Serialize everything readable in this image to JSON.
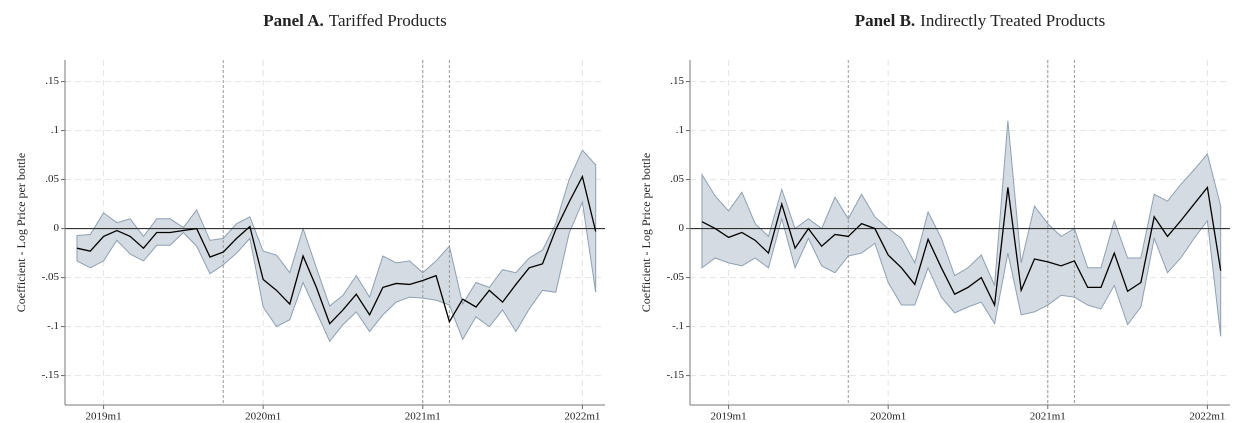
{
  "chart_data": [
    {
      "type": "line",
      "title_prefix": "Panel A.",
      "title": "Tariffed Products",
      "ylabel": "Coefficient - Log Price per bottle",
      "x": [
        706,
        707,
        708,
        709,
        710,
        711,
        712,
        713,
        714,
        715,
        716,
        717,
        718,
        719,
        720,
        721,
        722,
        723,
        724,
        725,
        726,
        727,
        728,
        729,
        730,
        731,
        732,
        733,
        734,
        735,
        736,
        737,
        738,
        739,
        740,
        741,
        742,
        743,
        744,
        745
      ],
      "values": [
        -0.02,
        -0.023,
        -0.008,
        -0.002,
        -0.008,
        -0.02,
        -0.004,
        -0.004,
        -0.002,
        0.0,
        -0.029,
        -0.024,
        -0.01,
        0.002,
        -0.052,
        -0.063,
        -0.077,
        -0.028,
        -0.06,
        -0.097,
        -0.083,
        -0.067,
        -0.088,
        -0.06,
        -0.056,
        -0.057,
        -0.053,
        -0.048,
        -0.095,
        -0.072,
        -0.08,
        -0.063,
        -0.075,
        -0.057,
        -0.04,
        -0.036,
        -0.001,
        0.027,
        0.053,
        -0.003
      ],
      "ci_upper": [
        -0.007,
        -0.006,
        0.016,
        0.006,
        0.01,
        -0.008,
        0.01,
        0.01,
        0.001,
        0.019,
        -0.012,
        -0.01,
        0.005,
        0.012,
        -0.023,
        -0.027,
        -0.045,
        0.0,
        -0.04,
        -0.079,
        -0.068,
        -0.048,
        -0.07,
        -0.028,
        -0.035,
        -0.033,
        -0.045,
        -0.033,
        -0.018,
        -0.077,
        -0.055,
        -0.06,
        -0.042,
        -0.045,
        -0.03,
        -0.022,
        0.005,
        0.05,
        0.08,
        0.065
      ],
      "ci_lower": [
        -0.033,
        -0.04,
        -0.033,
        -0.012,
        -0.026,
        -0.033,
        -0.017,
        -0.017,
        -0.004,
        -0.018,
        -0.046,
        -0.037,
        -0.025,
        -0.01,
        -0.08,
        -0.1,
        -0.093,
        -0.055,
        -0.085,
        -0.115,
        -0.098,
        -0.085,
        -0.105,
        -0.088,
        -0.075,
        -0.07,
        -0.071,
        -0.073,
        -0.078,
        -0.113,
        -0.09,
        -0.1,
        -0.083,
        -0.105,
        -0.082,
        -0.063,
        -0.065,
        -0.005,
        0.027,
        -0.065
      ],
      "color": "#000000",
      "band_color": "#d5dbe2",
      "band_edge": "#8ea0b4",
      "xlim": [
        705.1,
        745.7
      ],
      "ylim": [
        -0.18,
        0.172
      ],
      "xticks": [
        {
          "value": 708,
          "label": "2019m1"
        },
        {
          "value": 720,
          "label": "2020m1"
        },
        {
          "value": 732,
          "label": "2021m1"
        },
        {
          "value": 744,
          "label": "2022m1"
        }
      ],
      "yticks": [
        {
          "value": 0.15,
          "label": ".15"
        },
        {
          "value": 0.1,
          "label": ".1"
        },
        {
          "value": 0.05,
          "label": ".05"
        },
        0,
        {
          "value": -0.05,
          "label": "-.05"
        },
        {
          "value": -0.1,
          "label": "-.1"
        },
        {
          "value": -0.15,
          "label": "-.15"
        }
      ],
      "vlines": [
        717,
        732,
        734
      ],
      "refline": 0,
      "grid": true
    },
    {
      "type": "line",
      "title_prefix": "Panel B.",
      "title": "Indirectly Treated Products",
      "ylabel": "Coefficient - Log Price per bottle",
      "x": [
        706,
        707,
        708,
        709,
        710,
        711,
        712,
        713,
        714,
        715,
        716,
        717,
        718,
        719,
        720,
        721,
        722,
        723,
        724,
        725,
        726,
        727,
        728,
        729,
        730,
        731,
        732,
        733,
        734,
        735,
        736,
        737,
        738,
        739,
        740,
        741,
        742,
        743,
        744,
        745
      ],
      "values": [
        0.007,
        0.0,
        -0.009,
        -0.004,
        -0.012,
        -0.025,
        0.025,
        -0.02,
        0.0,
        -0.018,
        -0.006,
        -0.008,
        0.005,
        0.0,
        -0.027,
        -0.04,
        -0.057,
        -0.011,
        -0.04,
        -0.067,
        -0.06,
        -0.05,
        -0.078,
        0.042,
        -0.063,
        -0.031,
        -0.034,
        -0.038,
        -0.033,
        -0.06,
        -0.06,
        -0.025,
        -0.064,
        -0.055,
        0.012,
        -0.008,
        0.008,
        0.025,
        0.042,
        -0.043
      ],
      "ci_upper": [
        0.055,
        0.033,
        0.018,
        0.037,
        0.005,
        -0.008,
        0.04,
        0.0,
        0.01,
        0.0,
        0.032,
        0.01,
        0.035,
        0.012,
        0.0,
        -0.01,
        -0.035,
        0.017,
        -0.01,
        -0.048,
        -0.04,
        -0.027,
        -0.058,
        0.11,
        -0.035,
        0.023,
        0.005,
        -0.008,
        0.0,
        -0.04,
        -0.04,
        0.008,
        -0.03,
        -0.03,
        0.035,
        0.028,
        0.045,
        0.06,
        0.076,
        0.023
      ],
      "ci_lower": [
        -0.04,
        -0.03,
        -0.035,
        -0.038,
        -0.03,
        -0.04,
        0.01,
        -0.04,
        -0.01,
        -0.038,
        -0.045,
        -0.028,
        -0.025,
        -0.015,
        -0.055,
        -0.078,
        -0.078,
        -0.04,
        -0.07,
        -0.086,
        -0.08,
        -0.075,
        -0.097,
        -0.025,
        -0.088,
        -0.085,
        -0.078,
        -0.068,
        -0.07,
        -0.078,
        -0.082,
        -0.058,
        -0.098,
        -0.08,
        -0.01,
        -0.045,
        -0.03,
        -0.01,
        0.008,
        -0.11
      ],
      "color": "#000000",
      "band_color": "#d5dbe2",
      "band_edge": "#8ea0b4",
      "xlim": [
        705.1,
        745.7
      ],
      "ylim": [
        -0.18,
        0.172
      ],
      "xticks": [
        {
          "value": 708,
          "label": "2019m1"
        },
        {
          "value": 720,
          "label": "2020m1"
        },
        {
          "value": 732,
          "label": "2021m1"
        },
        {
          "value": 744,
          "label": "2022m1"
        }
      ],
      "yticks": [
        {
          "value": 0.15,
          "label": ".15"
        },
        {
          "value": 0.1,
          "label": ".1"
        },
        {
          "value": 0.05,
          "label": ".05"
        },
        0,
        {
          "value": -0.05,
          "label": "-.05"
        },
        {
          "value": -0.1,
          "label": "-.1"
        },
        {
          "value": -0.15,
          "label": "-.15"
        }
      ],
      "vlines": [
        717,
        732,
        734
      ],
      "refline": 0,
      "grid": true
    }
  ]
}
